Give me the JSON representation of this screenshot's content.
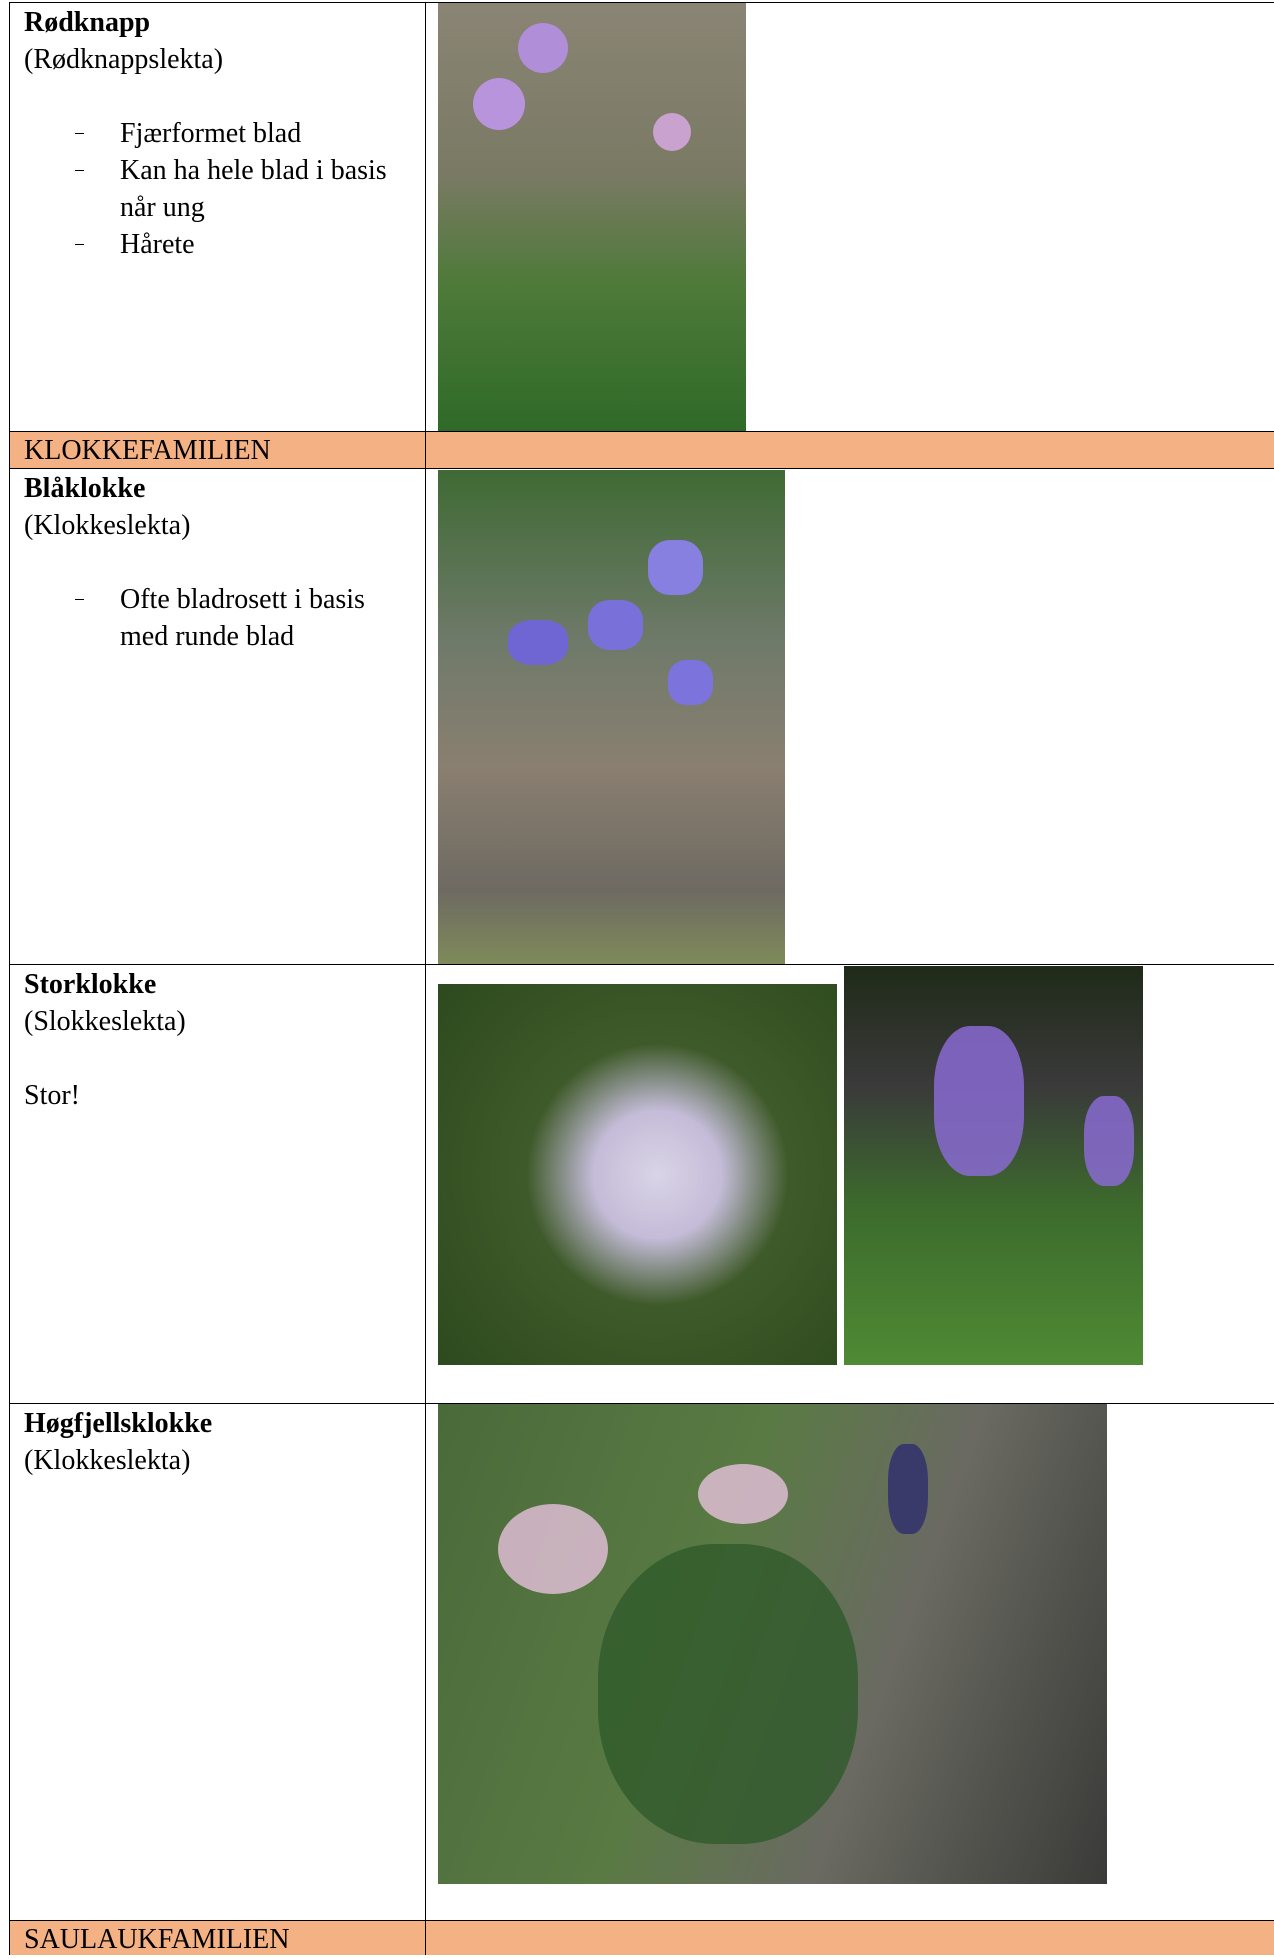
{
  "rows": [
    {
      "name": "Rødknapp",
      "genus": "(Rødknappslekta)",
      "bullets": [
        "Fjærformet blad",
        "Kan ha hele blad i basis når ung",
        "Hårete"
      ]
    },
    {
      "family": "KLOKKEFAMILIEN"
    },
    {
      "name": "Blåklokke",
      "genus": "(Klokkeslekta)",
      "bullets": [
        "Ofte bladrosett i basis med runde blad"
      ]
    },
    {
      "name": "Storklokke",
      "genus": "(Slokkeslekta)",
      "note": "Stor!"
    },
    {
      "name": "Høgfjellsklokke",
      "genus": "(Klokkeslekta)"
    },
    {
      "family": "SAULAUKFAMILIEN"
    }
  ]
}
